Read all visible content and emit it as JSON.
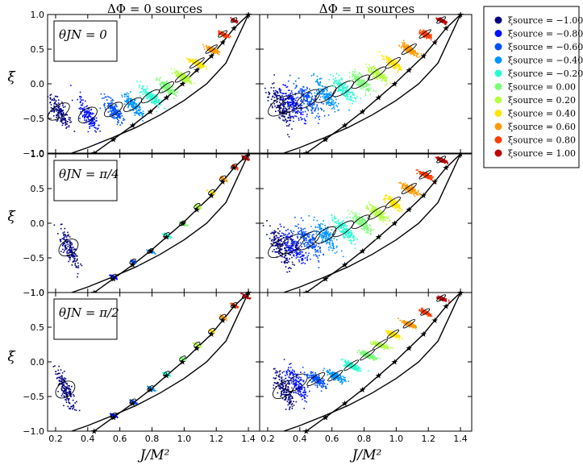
{
  "chart_data": {
    "type": "scatter",
    "column_titles": [
      "ΔΦ = 0 sources",
      "ΔΦ = π sources"
    ],
    "row_labels": [
      "θJN = 0",
      "θJN = π/4",
      "θJN = π/2"
    ],
    "xlabel": "J/M²",
    "ylabel": "ξ",
    "xlim": [
      0.15,
      1.47
    ],
    "ylim": [
      -1.0,
      1.0
    ],
    "xticks": [
      0.2,
      0.4,
      0.6,
      0.8,
      1.0,
      1.2,
      1.4
    ],
    "xtick_labels": [
      "0.2",
      "0.4",
      "0.6",
      "0.8",
      "1.0",
      "1.2",
      "1.4"
    ],
    "yticks": [
      -1.0,
      -0.5,
      0.0,
      0.5,
      1.0
    ],
    "ytick_labels": [
      "−1.0",
      "−0.5",
      "0.0",
      "0.5",
      "1.0"
    ],
    "legend": {
      "placement": "right-outside",
      "entries": [
        {
          "label": "ξsource = −1.00",
          "xi": -1.0,
          "color": "#00007f"
        },
        {
          "label": "ξsource = −0.80",
          "xi": -0.8,
          "color": "#0010ff"
        },
        {
          "label": "ξsource = −0.60",
          "xi": -0.6,
          "color": "#0050ff"
        },
        {
          "label": "ξsource = −0.40",
          "xi": -0.4,
          "color": "#0094ff"
        },
        {
          "label": "ξsource = −0.20",
          "xi": -0.2,
          "color": "#26ffd1"
        },
        {
          "label": "ξsource = 0.00",
          "xi": 0.0,
          "color": "#7dff7a"
        },
        {
          "label": "ξsource = 0.20",
          "xi": 0.2,
          "color": "#b4ff43"
        },
        {
          "label": "ξsource = 0.40",
          "xi": 0.4,
          "color": "#ffe500"
        },
        {
          "label": "ξsource = 0.60",
          "xi": 0.6,
          "color": "#ff9a00"
        },
        {
          "label": "ξsource = 0.80",
          "xi": 0.8,
          "color": "#ff3d00"
        },
        {
          "label": "ξsource = 1.00",
          "xi": 1.0,
          "color": "#c00000"
        }
      ]
    },
    "source_positions": {
      "xi": [
        -1.0,
        -0.8,
        -0.6,
        -0.4,
        -0.2,
        0.0,
        0.2,
        0.4,
        0.6,
        0.8,
        1.0
      ],
      "J": [
        0.44,
        0.56,
        0.68,
        0.79,
        0.89,
        0.99,
        1.08,
        1.17,
        1.24,
        1.31,
        1.4
      ]
    },
    "boundary_lower_J": [
      0.3,
      0.4,
      0.55,
      0.7,
      0.85,
      1.0,
      1.14,
      1.26,
      1.4
    ],
    "boundary_lower_xi": [
      -1.0,
      -0.92,
      -0.78,
      -0.63,
      -0.45,
      -0.24,
      0.0,
      0.3,
      1.0
    ],
    "panels": [
      {
        "id": "dphi0-theta0",
        "cluster_J": [
          0.22,
          0.4,
          0.56,
          0.68,
          0.79,
          0.89,
          0.99,
          1.08,
          1.17,
          1.24,
          1.31
        ],
        "cluster_xi": [
          -0.4,
          -0.45,
          -0.37,
          -0.3,
          -0.18,
          -0.05,
          0.1,
          0.3,
          0.5,
          0.72,
          0.92
        ],
        "spread_J": [
          0.07,
          0.06,
          0.06,
          0.06,
          0.06,
          0.05,
          0.05,
          0.05,
          0.04,
          0.03,
          0.02
        ],
        "spread_xi": [
          0.25,
          0.25,
          0.2,
          0.17,
          0.14,
          0.11,
          0.09,
          0.07,
          0.05,
          0.04,
          0.03
        ]
      },
      {
        "id": "dphipi-theta0",
        "cluster_J": [
          0.28,
          0.35,
          0.45,
          0.56,
          0.67,
          0.78,
          0.88,
          0.98,
          1.08,
          1.18,
          1.28
        ],
        "cluster_xi": [
          -0.32,
          -0.28,
          -0.22,
          -0.15,
          -0.07,
          0.03,
          0.15,
          0.3,
          0.5,
          0.72,
          0.92
        ],
        "spread_J": [
          0.08,
          0.08,
          0.08,
          0.07,
          0.07,
          0.06,
          0.06,
          0.05,
          0.05,
          0.04,
          0.03
        ],
        "spread_xi": [
          0.3,
          0.28,
          0.25,
          0.22,
          0.18,
          0.15,
          0.12,
          0.1,
          0.08,
          0.06,
          0.04
        ]
      },
      {
        "id": "dphi0-theta45",
        "cluster_J": [
          0.28,
          0.56,
          0.68,
          0.79,
          0.89,
          0.99,
          1.08,
          1.17,
          1.24,
          1.31,
          1.38
        ],
        "cluster_xi": [
          -0.35,
          -0.77,
          -0.55,
          -0.4,
          -0.17,
          0.0,
          0.25,
          0.45,
          0.65,
          0.82,
          0.95
        ],
        "spread_J": [
          0.06,
          0.02,
          0.02,
          0.02,
          0.02,
          0.02,
          0.02,
          0.02,
          0.02,
          0.02,
          0.02
        ],
        "spread_xi": [
          0.3,
          0.03,
          0.03,
          0.03,
          0.03,
          0.03,
          0.03,
          0.03,
          0.03,
          0.03,
          0.03
        ]
      },
      {
        "id": "dphipi-theta45",
        "cluster_J": [
          0.28,
          0.35,
          0.45,
          0.56,
          0.67,
          0.78,
          0.88,
          0.98,
          1.08,
          1.18,
          1.28
        ],
        "cluster_xi": [
          -0.35,
          -0.3,
          -0.25,
          -0.17,
          -0.08,
          0.02,
          0.15,
          0.3,
          0.5,
          0.7,
          0.92
        ],
        "spread_J": [
          0.08,
          0.08,
          0.08,
          0.07,
          0.07,
          0.06,
          0.06,
          0.05,
          0.05,
          0.04,
          0.03
        ],
        "spread_xi": [
          0.3,
          0.28,
          0.25,
          0.22,
          0.18,
          0.15,
          0.12,
          0.1,
          0.08,
          0.06,
          0.04
        ]
      },
      {
        "id": "dphi0-theta90",
        "cluster_J": [
          0.26,
          0.56,
          0.68,
          0.79,
          0.89,
          0.99,
          1.08,
          1.17,
          1.24,
          1.31,
          1.38
        ],
        "cluster_xi": [
          -0.4,
          -0.77,
          -0.57,
          -0.38,
          -0.17,
          0.05,
          0.25,
          0.45,
          0.65,
          0.82,
          0.95
        ],
        "spread_J": [
          0.06,
          0.02,
          0.02,
          0.02,
          0.02,
          0.02,
          0.02,
          0.02,
          0.02,
          0.02,
          0.02
        ],
        "spread_xi": [
          0.3,
          0.03,
          0.03,
          0.03,
          0.03,
          0.03,
          0.03,
          0.03,
          0.03,
          0.03,
          0.03
        ]
      },
      {
        "id": "dphipi-theta90",
        "cluster_J": [
          0.3,
          0.38,
          0.5,
          0.62,
          0.72,
          0.82,
          0.9,
          0.98,
          1.08,
          1.18,
          1.28
        ],
        "cluster_xi": [
          -0.4,
          -0.3,
          -0.25,
          -0.2,
          -0.05,
          0.1,
          0.25,
          0.4,
          0.55,
          0.72,
          0.92
        ],
        "spread_J": [
          0.07,
          0.07,
          0.06,
          0.05,
          0.05,
          0.05,
          0.05,
          0.04,
          0.04,
          0.03,
          0.03
        ],
        "spread_xi": [
          0.28,
          0.25,
          0.12,
          0.08,
          0.07,
          0.06,
          0.05,
          0.05,
          0.05,
          0.04,
          0.03
        ]
      }
    ]
  }
}
